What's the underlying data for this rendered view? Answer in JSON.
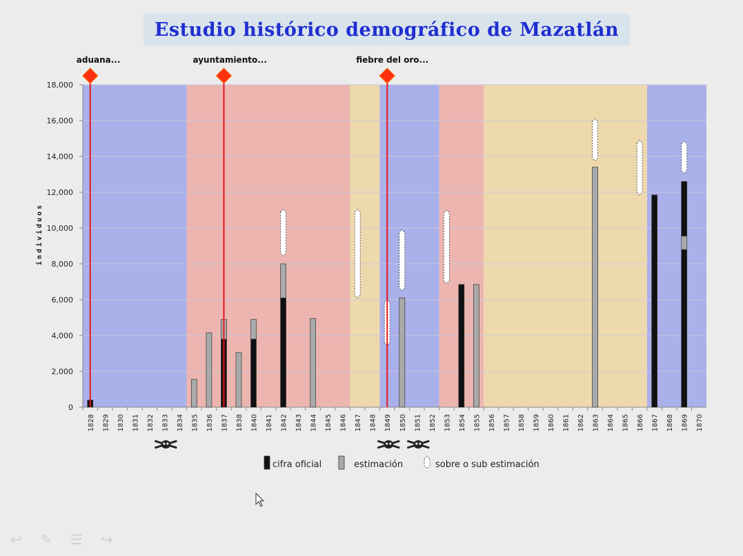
{
  "title": "Estudio histórico demográfico de Mazatlán",
  "chart_data": {
    "type": "bar",
    "stacked": true,
    "ylabel": "individuos",
    "ylim": [
      0,
      18000
    ],
    "ytick_step": 2000,
    "grid": true,
    "categories": [
      "1828",
      "1829",
      "1830",
      "1831",
      "1832",
      "1833",
      "1834",
      "1835",
      "1836",
      "1837",
      "1838",
      "1840",
      "1841",
      "1842",
      "1843",
      "1844",
      "1845",
      "1846",
      "1847",
      "1848",
      "1849",
      "1850",
      "1851",
      "1852",
      "1853",
      "1854",
      "1855",
      "1856",
      "1857",
      "1858",
      "1859",
      "1860",
      "1861",
      "1862",
      "1863",
      "1864",
      "1865",
      "1866",
      "1867",
      "1868",
      "1869",
      "1870"
    ],
    "series": [
      {
        "name": "cifra oficial",
        "color": "#111111",
        "values": [
          400,
          0,
          0,
          0,
          0,
          0,
          0,
          0,
          0,
          3800,
          0,
          3800,
          0,
          6100,
          0,
          0,
          0,
          0,
          0,
          0,
          0,
          0,
          0,
          0,
          0,
          6850,
          0,
          0,
          0,
          0,
          0,
          0,
          0,
          0,
          0,
          0,
          0,
          0,
          11850,
          0,
          8800,
          0
        ]
      },
      {
        "name": "estimación",
        "color": "#aaaaaa",
        "values": [
          0,
          0,
          0,
          0,
          0,
          0,
          0,
          1550,
          4150,
          1100,
          3050,
          1100,
          0,
          1900,
          0,
          4950,
          0,
          0,
          0,
          0,
          0,
          6100,
          0,
          0,
          0,
          0,
          6850,
          0,
          0,
          0,
          0,
          0,
          0,
          0,
          13400,
          0,
          0,
          0,
          0,
          0,
          750,
          0
        ]
      },
      {
        "name": "sobre o sub estimación",
        "color": "#ffffff",
        "ranges": [
          {
            "category": "1842",
            "low": 8450,
            "high": 11050
          },
          {
            "category": "1847",
            "low": 6100,
            "high": 11050
          },
          {
            "category": "1849",
            "low": 3450,
            "high": 6000
          },
          {
            "category": "1850",
            "low": 6500,
            "high": 9900
          },
          {
            "category": "1853",
            "low": 6900,
            "high": 11000
          },
          {
            "category": "1863",
            "low": 13750,
            "high": 16100
          },
          {
            "category": "1866",
            "low": 11850,
            "high": 14900
          },
          {
            "category": "1869",
            "low": 13050,
            "high": 14850
          },
          {
            "category": "1869",
            "low": 9550,
            "high": 12600,
            "on_dark": true
          }
        ]
      }
    ],
    "series_extra_black_on_1869_top": {
      "category": "1869",
      "low": 9550,
      "high": 12600
    },
    "periods": [
      {
        "from": "1828",
        "to": "1835",
        "color": "#aab0ea"
      },
      {
        "from": "1835",
        "to": "1847",
        "color": "#edb5b0"
      },
      {
        "from": "1847",
        "to": "1849",
        "color": "#eed9ad"
      },
      {
        "from": "1849",
        "to": "1853",
        "color": "#aab0ea"
      },
      {
        "from": "1853",
        "to": "1856",
        "color": "#edb5b0"
      },
      {
        "from": "1856",
        "to": "1867",
        "color": "#eed9ad"
      },
      {
        "from": "1867",
        "to": "1870",
        "color": "#aab0ea"
      }
    ],
    "events": [
      {
        "label": "aduana...",
        "category": "1828"
      },
      {
        "label": "ayuntamiento...",
        "category": "1837"
      },
      {
        "label": "fiebre del oro...",
        "category": "1849"
      }
    ],
    "epidemics": [
      "1833",
      "1849",
      "1851"
    ],
    "legend": [
      {
        "label": "cifra oficial",
        "color": "#111111"
      },
      {
        "label": "estimación",
        "color": "#aaaaaa"
      },
      {
        "label": "sobre o sub estimación",
        "color": "#ffffff"
      }
    ]
  }
}
